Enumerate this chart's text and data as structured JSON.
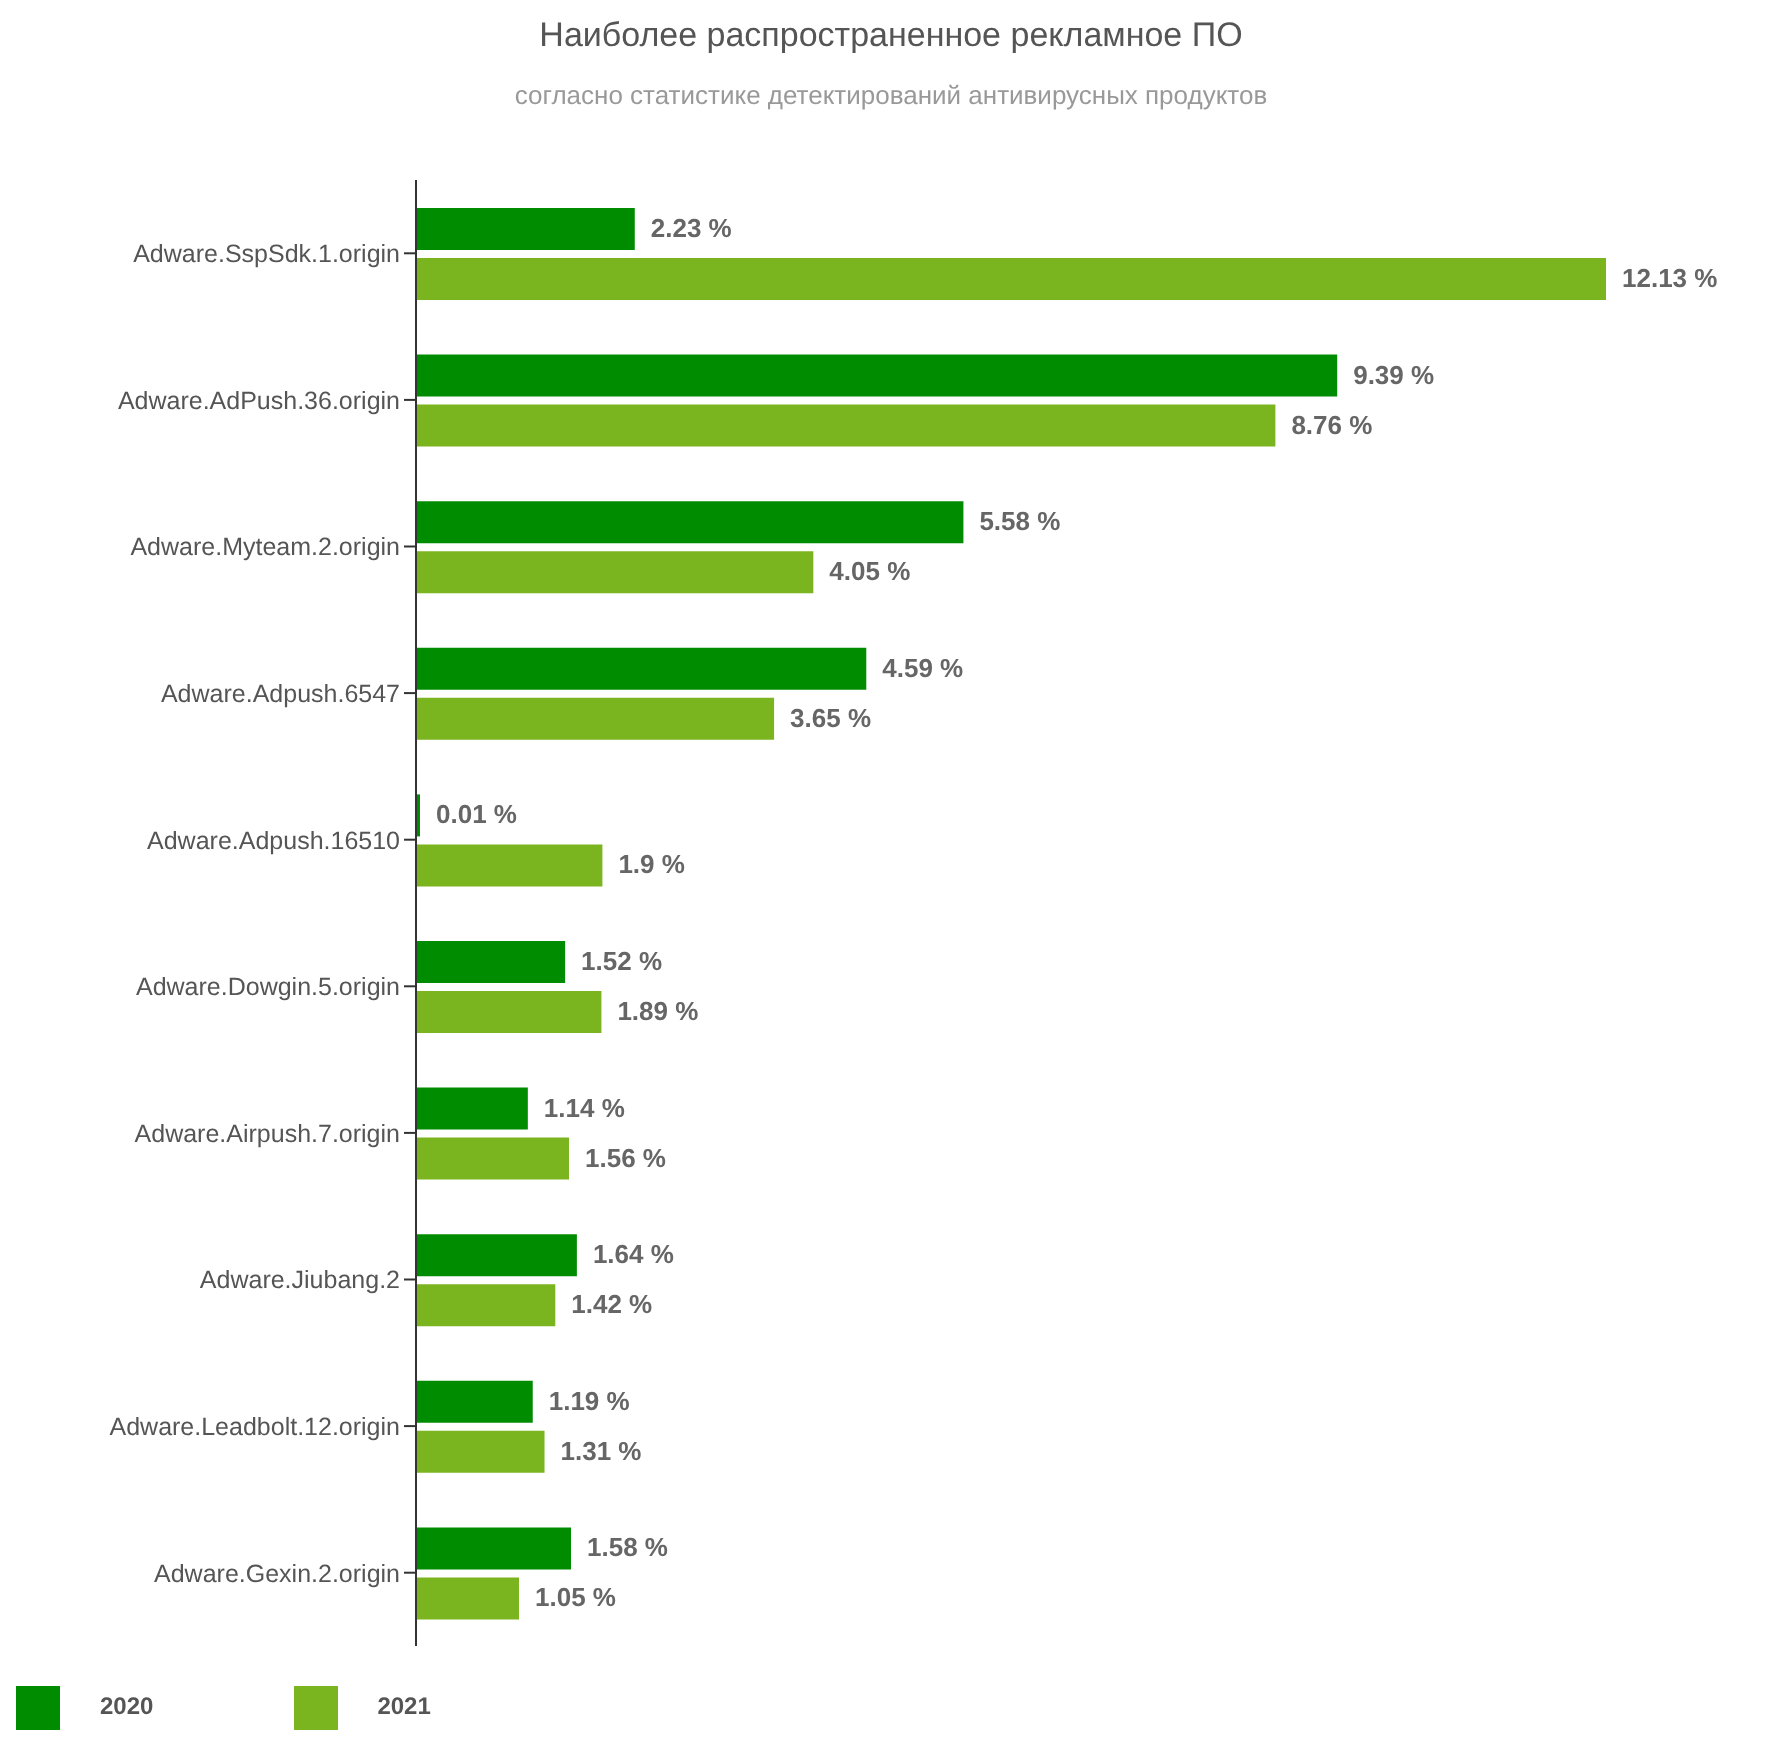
{
  "chart_data": {
    "type": "bar",
    "orientation": "horizontal",
    "title": "Наиболее распространенное рекламное ПО",
    "subtitle": "согласно статистике детектирований антивирусных продуктов",
    "categories": [
      "Adware.SspSdk.1.origin",
      "Adware.AdPush.36.origin",
      "Adware.Myteam.2.origin",
      "Adware.Adpush.6547",
      "Adware.Adpush.16510",
      "Adware.Dowgin.5.origin",
      "Adware.Airpush.7.origin",
      "Adware.Jiubang.2",
      "Adware.Leadbolt.12.origin",
      "Adware.Gexin.2.origin"
    ],
    "series": [
      {
        "name": "2020",
        "color": "#008c00",
        "values": [
          2.23,
          9.39,
          5.58,
          4.59,
          0.01,
          1.52,
          1.14,
          1.64,
          1.19,
          1.58
        ],
        "value_labels": [
          "2.23 %",
          "9.39 %",
          "5.58 %",
          "4.59 %",
          "0.01 %",
          "1.52 %",
          "1.14 %",
          "1.64 %",
          "1.19 %",
          "1.58 %"
        ]
      },
      {
        "name": "2021",
        "color": "#7ab41e",
        "values": [
          12.13,
          8.76,
          4.05,
          3.65,
          1.9,
          1.89,
          1.56,
          1.42,
          1.31,
          1.05
        ],
        "value_labels": [
          "12.13 %",
          "8.76 %",
          "4.05 %",
          "3.65 %",
          "1.9 %",
          "1.89 %",
          "1.56 %",
          "1.42 %",
          "1.31 %",
          "1.05 %"
        ]
      }
    ],
    "legend": "bottom left",
    "grid": false
  }
}
